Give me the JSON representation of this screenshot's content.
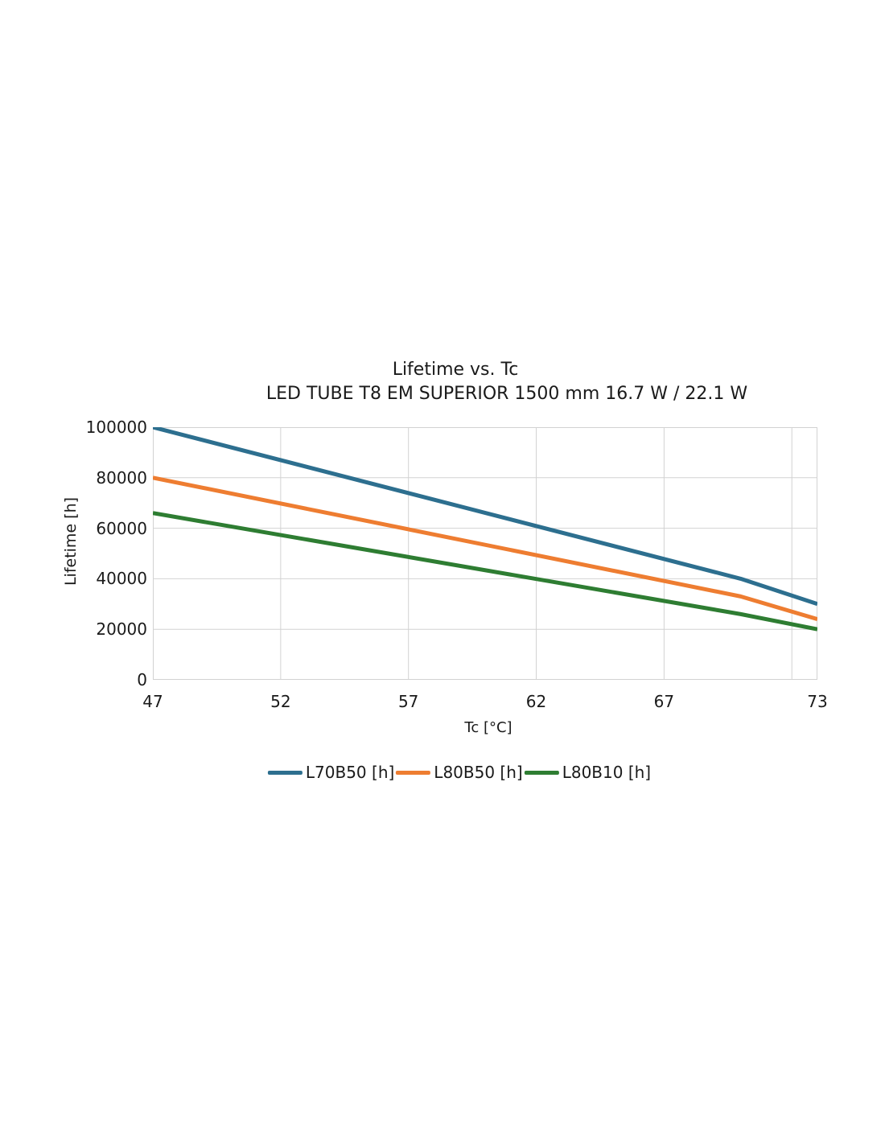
{
  "title": {
    "line1": "Lifetime vs. Tc",
    "line2": "LED TUBE T8 EM SUPERIOR 1500 mm 16.7 W / 22.1 W"
  },
  "chart_data": {
    "type": "line",
    "title": "Lifetime vs. Tc",
    "subtitle": "LED TUBE T8 EM SUPERIOR 1500 mm 16.7 W / 22.1 W",
    "xlabel": "Tc [°C]",
    "ylabel": "Lifetime [h]",
    "xlim": [
      47,
      73
    ],
    "ylim": [
      0,
      100000
    ],
    "grid": true,
    "legend_position": "bottom",
    "x_gridlines": [
      47,
      52,
      57,
      62,
      67,
      72,
      73
    ],
    "xticks": [
      {
        "value": 47,
        "label": "47"
      },
      {
        "value": 52,
        "label": "52"
      },
      {
        "value": 57,
        "label": "57"
      },
      {
        "value": 62,
        "label": "62"
      },
      {
        "value": 67,
        "label": "67"
      },
      {
        "value": 73,
        "label": "73"
      }
    ],
    "yticks": [
      {
        "value": 0,
        "label": "0"
      },
      {
        "value": 20000,
        "label": "20000"
      },
      {
        "value": 40000,
        "label": "40000"
      },
      {
        "value": 60000,
        "label": "60000"
      },
      {
        "value": 80000,
        "label": "80000"
      },
      {
        "value": 100000,
        "label": "100000"
      }
    ],
    "series": [
      {
        "name": "L70B50 [h]",
        "color": "#2d6f8f",
        "points": [
          [
            47,
            100000
          ],
          [
            70,
            40000
          ],
          [
            73,
            30000
          ]
        ]
      },
      {
        "name": "L80B50 [h]",
        "color": "#ee7d31",
        "points": [
          [
            47,
            80000
          ],
          [
            70,
            33000
          ],
          [
            73,
            24000
          ]
        ]
      },
      {
        "name": "L80B10 [h]",
        "color": "#2e7d32",
        "points": [
          [
            47,
            66000
          ],
          [
            70,
            26000
          ],
          [
            73,
            20000
          ]
        ]
      }
    ]
  },
  "style": {
    "grid_color": "#d2d2d2",
    "text_color": "#1a1a1a",
    "background": "#ffffff",
    "line_width": 5
  }
}
